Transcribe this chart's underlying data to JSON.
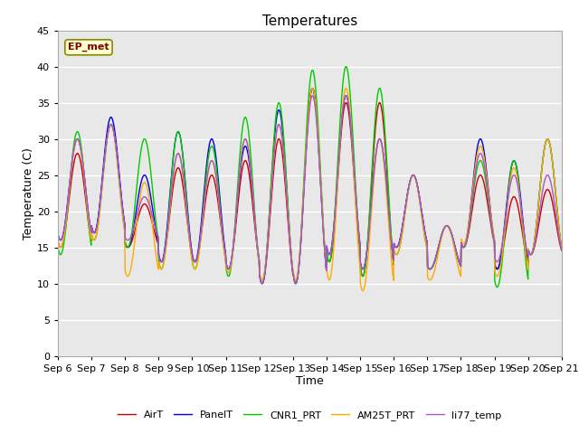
{
  "title": "Temperatures",
  "xlabel": "Time",
  "ylabel": "Temperature (C)",
  "ylim": [
    0,
    45
  ],
  "yticks": [
    0,
    5,
    10,
    15,
    20,
    25,
    30,
    35,
    40,
    45
  ],
  "x_tick_labels": [
    "Sep 6",
    "Sep 7",
    "Sep 8",
    "Sep 9",
    "Sep 10",
    "Sep 11",
    "Sep 12",
    "Sep 13",
    "Sep 14",
    "Sep 15",
    "Sep 16",
    "Sep 17",
    "Sep 18",
    "Sep 19",
    "Sep 20",
    "Sep 21"
  ],
  "series_names": [
    "AirT",
    "PanelT",
    "CNR1_PRT",
    "AM25T_PRT",
    "li77_temp"
  ],
  "series_colors": [
    "#cc0000",
    "#0000dd",
    "#00cc00",
    "#ffaa00",
    "#aa55cc"
  ],
  "series_lw": [
    1.0,
    1.0,
    1.0,
    1.0,
    1.0
  ],
  "annotation_text": "EP_met",
  "fig_bg": "#ffffff",
  "plot_bg": "#e8e8e8",
  "title_fontsize": 11,
  "axis_label_fontsize": 9,
  "tick_fontsize": 8,
  "legend_fontsize": 8,
  "grid_color": "#ffffff",
  "grid_lw": 1.0,
  "day_peaks_air": [
    28,
    32,
    21,
    26,
    25,
    27,
    30,
    37,
    35,
    35,
    25,
    18,
    25,
    22,
    23
  ],
  "day_troughs_air": [
    15,
    17,
    15,
    13,
    13,
    12,
    10,
    10,
    13,
    11,
    15,
    12,
    15,
    12,
    14
  ],
  "day_peaks_panel": [
    30,
    33,
    25,
    31,
    30,
    29,
    34,
    37,
    36,
    30,
    25,
    18,
    30,
    27,
    30
  ],
  "day_troughs_panel": [
    16,
    17,
    15,
    13,
    13,
    12,
    10,
    10,
    14,
    12,
    15,
    12,
    15,
    12,
    14
  ],
  "day_peaks_cnr": [
    31,
    32,
    30,
    31,
    29,
    33,
    35,
    39.5,
    40,
    37,
    25,
    18,
    27,
    27,
    30
  ],
  "day_troughs_cnr": [
    14,
    16,
    15,
    12,
    12,
    11,
    10,
    10,
    13,
    11,
    14,
    12,
    15,
    9.5,
    14
  ],
  "day_peaks_am25": [
    30,
    32,
    24,
    28,
    27,
    30,
    32,
    37,
    37,
    30,
    25,
    18,
    29,
    26,
    30
  ],
  "day_troughs_am25": [
    15,
    16,
    11,
    12,
    12,
    11.5,
    10.5,
    10.5,
    10.5,
    9,
    14,
    10.5,
    15.5,
    11,
    14
  ],
  "day_peaks_li77": [
    30,
    32,
    22,
    28,
    27,
    30,
    32,
    36,
    36,
    30,
    25,
    18,
    28,
    25,
    25
  ],
  "day_troughs_li77": [
    16,
    17,
    16,
    13,
    13,
    12,
    10,
    10,
    14,
    12,
    15,
    12,
    15,
    13,
    14
  ]
}
